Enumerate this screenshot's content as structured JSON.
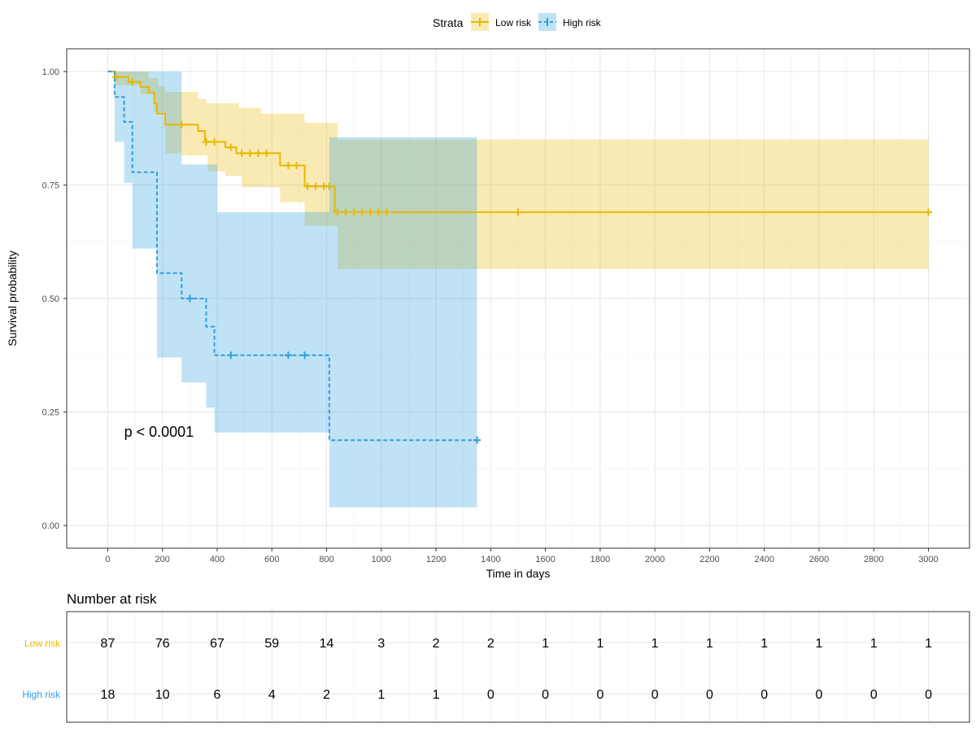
{
  "legend": {
    "title": "Strata",
    "position": "top",
    "items": [
      {
        "label": "Low risk",
        "color": "#E7B800",
        "linetype": "solid"
      },
      {
        "label": "High risk",
        "color": "#2E9FDF",
        "linetype": "dashed"
      }
    ]
  },
  "chart_data": [
    {
      "type": "line",
      "subtype": "kaplan-meier step curve with confidence bands and censor marks",
      "xlabel": "Time in days",
      "ylabel": "Survival probability",
      "xlim": [
        -150,
        3150
      ],
      "ylim": [
        -0.05,
        1.05
      ],
      "xticks": [
        0,
        200,
        400,
        600,
        800,
        1000,
        1200,
        1400,
        1600,
        1800,
        2000,
        2200,
        2400,
        2600,
        2800,
        3000
      ],
      "xtick_labels": [
        "0",
        "200",
        "400",
        "600",
        "800",
        "1000",
        "1200",
        "1400",
        "1600",
        "1800",
        "2000",
        "2200",
        "2400",
        "2600",
        "2800",
        "3000"
      ],
      "yticks": [
        0,
        0.25,
        0.5,
        0.75,
        1.0
      ],
      "ytick_labels": [
        "0.00",
        "0.25",
        "0.50",
        "0.75",
        "1.00"
      ],
      "grid": true,
      "annotation": {
        "text": "p < 0.0001",
        "x": 60,
        "y": 0.195
      },
      "series": [
        {
          "name": "Low risk",
          "color": "#E7B800",
          "linetype": "solid",
          "steps": [
            [
              0,
              1.0
            ],
            [
              25,
              0.988
            ],
            [
              75,
              0.977
            ],
            [
              120,
              0.966
            ],
            [
              150,
              0.954
            ],
            [
              170,
              0.93
            ],
            [
              180,
              0.907
            ],
            [
              210,
              0.883
            ],
            [
              330,
              0.869
            ],
            [
              355,
              0.845
            ],
            [
              430,
              0.833
            ],
            [
              470,
              0.82
            ],
            [
              630,
              0.793
            ],
            [
              720,
              0.747
            ],
            [
              830,
              0.69
            ],
            [
              3000,
              0.69
            ]
          ],
          "upper": [
            [
              0,
              1.0
            ],
            [
              120,
              1.0
            ],
            [
              150,
              0.985
            ],
            [
              185,
              0.967
            ],
            [
              210,
              0.955
            ],
            [
              330,
              0.94
            ],
            [
              360,
              0.93
            ],
            [
              480,
              0.92
            ],
            [
              560,
              0.907
            ],
            [
              720,
              0.887
            ],
            [
              840,
              0.85
            ],
            [
              1400,
              0.85
            ],
            [
              3000,
              0.85
            ]
          ],
          "lower": [
            [
              0,
              1.0
            ],
            [
              25,
              0.97
            ],
            [
              120,
              0.95
            ],
            [
              170,
              0.91
            ],
            [
              210,
              0.82
            ],
            [
              270,
              0.815
            ],
            [
              365,
              0.78
            ],
            [
              430,
              0.77
            ],
            [
              490,
              0.745
            ],
            [
              630,
              0.712
            ],
            [
              720,
              0.66
            ],
            [
              840,
              0.565
            ],
            [
              3000,
              0.565
            ]
          ],
          "censors": [
            [
              30,
              0.988
            ],
            [
              90,
              0.977
            ],
            [
              270,
              0.883
            ],
            [
              360,
              0.845
            ],
            [
              390,
              0.845
            ],
            [
              450,
              0.833
            ],
            [
              490,
              0.82
            ],
            [
              520,
              0.82
            ],
            [
              550,
              0.82
            ],
            [
              580,
              0.82
            ],
            [
              660,
              0.793
            ],
            [
              690,
              0.793
            ],
            [
              730,
              0.747
            ],
            [
              760,
              0.747
            ],
            [
              790,
              0.747
            ],
            [
              810,
              0.747
            ],
            [
              840,
              0.69
            ],
            [
              870,
              0.69
            ],
            [
              900,
              0.69
            ],
            [
              930,
              0.69
            ],
            [
              960,
              0.69
            ],
            [
              990,
              0.69
            ],
            [
              1020,
              0.69
            ],
            [
              1500,
              0.69
            ],
            [
              3000,
              0.69
            ]
          ]
        },
        {
          "name": "High risk",
          "color": "#2E9FDF",
          "linetype": "dashed",
          "steps": [
            [
              0,
              1.0
            ],
            [
              25,
              0.944
            ],
            [
              60,
              0.889
            ],
            [
              90,
              0.778
            ],
            [
              180,
              0.556
            ],
            [
              270,
              0.5
            ],
            [
              360,
              0.438
            ],
            [
              390,
              0.375
            ],
            [
              810,
              0.188
            ],
            [
              1350,
              0.188
            ]
          ],
          "upper": [
            [
              0,
              1.0
            ],
            [
              180,
              1.0
            ],
            [
              270,
              0.795
            ],
            [
              400,
              0.69
            ],
            [
              810,
              0.855
            ],
            [
              1350,
              0.855
            ]
          ],
          "lower": [
            [
              0,
              1.0
            ],
            [
              25,
              0.845
            ],
            [
              60,
              0.755
            ],
            [
              90,
              0.61
            ],
            [
              180,
              0.37
            ],
            [
              270,
              0.315
            ],
            [
              360,
              0.26
            ],
            [
              390,
              0.205
            ],
            [
              810,
              0.04
            ],
            [
              1350,
              0.04
            ]
          ],
          "censors": [
            [
              300,
              0.5
            ],
            [
              450,
              0.375
            ],
            [
              660,
              0.375
            ],
            [
              720,
              0.375
            ],
            [
              1350,
              0.188
            ]
          ]
        }
      ]
    },
    {
      "type": "table",
      "title": "Number at risk",
      "times": [
        0,
        200,
        400,
        600,
        800,
        1000,
        1200,
        1400,
        1600,
        1800,
        2000,
        2200,
        2400,
        2600,
        2800,
        3000
      ],
      "rows": [
        {
          "label": "Low risk",
          "color": "#E7B800",
          "values": [
            87,
            76,
            67,
            59,
            14,
            3,
            2,
            2,
            1,
            1,
            1,
            1,
            1,
            1,
            1,
            1
          ]
        },
        {
          "label": "High risk",
          "color": "#2E9FDF",
          "values": [
            18,
            10,
            6,
            4,
            2,
            1,
            1,
            0,
            0,
            0,
            0,
            0,
            0,
            0,
            0,
            0
          ]
        }
      ]
    }
  ]
}
